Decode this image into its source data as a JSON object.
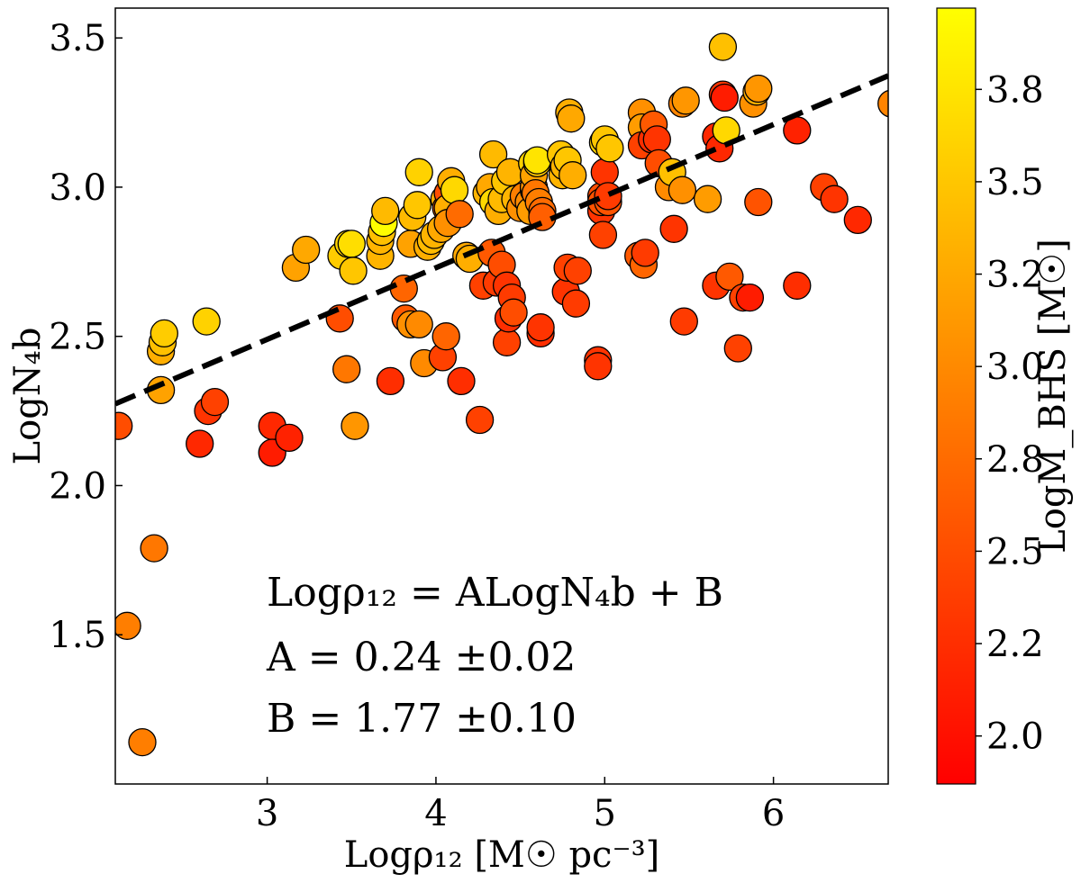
{
  "chart_data": {
    "type": "scatter",
    "xlabel": "Logρ₁₂ [M☉ pc⁻³]",
    "ylabel": "LogN₄b",
    "xlim": [
      2.1,
      6.68
    ],
    "ylim": [
      1.0,
      3.6
    ],
    "xticks": [
      3,
      4,
      5,
      6
    ],
    "xtick_labels": [
      "3",
      "4",
      "5",
      "6"
    ],
    "yticks": [
      1.5,
      2.0,
      2.5,
      3.0,
      3.5
    ],
    "ytick_labels": [
      "1.5",
      "2.0",
      "2.5",
      "3.0",
      "3.5"
    ],
    "grid": false,
    "fit_line": {
      "slope": 0.24,
      "intercept": 1.77,
      "style": "dashed",
      "color": "#000000"
    },
    "annotations": {
      "equation": "Logρ₁₂ = ALogN₄b + B",
      "a_text": "A = 0.24 ±0.02",
      "b_text": "B = 1.77 ±0.10"
    },
    "colorbar": {
      "label": "LogM_BHS [M☉]",
      "min": 1.87,
      "max": 3.97,
      "colors": [
        "#ff0000",
        "#ff8000",
        "#ffff00"
      ],
      "ticks": [
        2.0,
        2.25,
        2.5,
        2.75,
        3.0,
        3.25,
        3.5,
        3.75
      ],
      "tick_labels": [
        "2.0",
        "2.2",
        "2.5",
        "2.8",
        "3.0",
        "3.2",
        "3.5",
        "3.8"
      ]
    },
    "points": [
      [
        2.12,
        2.2,
        2.5
      ],
      [
        2.17,
        1.53,
        2.9
      ],
      [
        2.26,
        1.14,
        2.9
      ],
      [
        2.33,
        1.79,
        2.85
      ],
      [
        2.37,
        2.32,
        3.2
      ],
      [
        2.37,
        2.45,
        3.3
      ],
      [
        2.38,
        2.48,
        3.45
      ],
      [
        2.39,
        2.51,
        3.55
      ],
      [
        2.6,
        2.14,
        2.2
      ],
      [
        2.64,
        2.55,
        3.6
      ],
      [
        2.65,
        2.25,
        2.3
      ],
      [
        2.69,
        2.28,
        2.4
      ],
      [
        3.03,
        2.2,
        2.2
      ],
      [
        3.03,
        2.11,
        2.1
      ],
      [
        3.13,
        2.16,
        2.15
      ],
      [
        3.17,
        2.73,
        3.2
      ],
      [
        3.23,
        2.79,
        3.25
      ],
      [
        3.43,
        2.56,
        2.5
      ],
      [
        3.44,
        2.77,
        3.55
      ],
      [
        3.47,
        2.39,
        2.85
      ],
      [
        3.48,
        2.81,
        3.6
      ],
      [
        3.5,
        2.81,
        3.7
      ],
      [
        3.51,
        2.72,
        3.5
      ],
      [
        3.52,
        2.2,
        3.1
      ],
      [
        3.67,
        2.77,
        3.35
      ],
      [
        3.67,
        2.82,
        3.35
      ],
      [
        3.68,
        2.85,
        3.45
      ],
      [
        3.69,
        2.88,
        3.95
      ],
      [
        3.7,
        2.92,
        3.4
      ],
      [
        3.73,
        2.35,
        2.25
      ],
      [
        3.81,
        2.66,
        2.7
      ],
      [
        3.82,
        2.56,
        2.6
      ],
      [
        3.85,
        2.54,
        3.05
      ],
      [
        3.85,
        2.81,
        3.2
      ],
      [
        3.86,
        2.9,
        3.4
      ],
      [
        3.89,
        2.94,
        3.5
      ],
      [
        3.9,
        3.05,
        3.6
      ],
      [
        3.9,
        2.54,
        3.0
      ],
      [
        3.93,
        2.41,
        3.0
      ],
      [
        3.95,
        2.8,
        3.3
      ],
      [
        3.97,
        2.82,
        3.4
      ],
      [
        3.99,
        2.84,
        3.35
      ],
      [
        4.03,
        2.86,
        3.25
      ],
      [
        4.04,
        2.43,
        2.4
      ],
      [
        4.05,
        2.96,
        3.3
      ],
      [
        4.06,
        2.5,
        2.7
      ],
      [
        4.06,
        2.93,
        2.6
      ],
      [
        4.07,
        2.98,
        2.5
      ],
      [
        4.07,
        2.93,
        3.3
      ],
      [
        4.07,
        2.88,
        3.05
      ],
      [
        4.09,
        3.02,
        3.3
      ],
      [
        4.11,
        2.99,
        3.65
      ],
      [
        4.14,
        2.91,
        2.75
      ],
      [
        4.15,
        2.35,
        2.25
      ],
      [
        4.18,
        2.77,
        3.25
      ],
      [
        4.2,
        2.76,
        3.3
      ],
      [
        4.26,
        2.22,
        2.4
      ],
      [
        4.28,
        2.67,
        2.4
      ],
      [
        4.3,
        2.98,
        3.35
      ],
      [
        4.32,
        3.0,
        3.25
      ],
      [
        4.33,
        2.78,
        2.6
      ],
      [
        4.34,
        3.11,
        3.4
      ],
      [
        4.34,
        2.95,
        3.65
      ],
      [
        4.36,
        2.68,
        2.35
      ],
      [
        4.37,
        2.92,
        3.3
      ],
      [
        4.39,
        2.74,
        2.5
      ],
      [
        4.39,
        2.96,
        3.4
      ],
      [
        4.41,
        3.02,
        3.5
      ],
      [
        4.42,
        2.67,
        2.3
      ],
      [
        4.42,
        2.48,
        2.4
      ],
      [
        4.43,
        2.56,
        2.25
      ],
      [
        4.44,
        3.05,
        3.35
      ],
      [
        4.45,
        2.63,
        2.35
      ],
      [
        4.46,
        2.58,
        2.5
      ],
      [
        4.47,
        2.96,
        3.35
      ],
      [
        4.5,
        2.93,
        3.05
      ],
      [
        4.52,
        2.97,
        2.9
      ],
      [
        4.55,
        2.95,
        3.0
      ],
      [
        4.56,
        2.92,
        3.15
      ],
      [
        4.57,
        3.08,
        3.6
      ],
      [
        4.58,
        2.99,
        2.6
      ],
      [
        4.58,
        3.0,
        3.05
      ],
      [
        4.58,
        3.04,
        3.2
      ],
      [
        4.59,
        2.98,
        2.85
      ],
      [
        4.6,
        3.08,
        3.5
      ],
      [
        4.6,
        3.09,
        3.75
      ],
      [
        4.61,
        2.95,
        2.9
      ],
      [
        4.62,
        2.51,
        2.25
      ],
      [
        4.62,
        2.53,
        2.3
      ],
      [
        4.63,
        2.92,
        2.75
      ],
      [
        4.63,
        2.9,
        2.65
      ],
      [
        4.74,
        3.11,
        3.5
      ],
      [
        4.75,
        3.04,
        3.35
      ],
      [
        4.76,
        3.07,
        3.35
      ],
      [
        4.77,
        2.65,
        2.3
      ],
      [
        4.78,
        2.73,
        2.4
      ],
      [
        4.78,
        3.09,
        3.5
      ],
      [
        4.79,
        3.25,
        3.3
      ],
      [
        4.8,
        3.23,
        3.25
      ],
      [
        4.81,
        3.04,
        3.3
      ],
      [
        4.83,
        2.61,
        2.35
      ],
      [
        4.84,
        2.72,
        2.4
      ],
      [
        4.96,
        2.42,
        2.3
      ],
      [
        4.96,
        2.4,
        2.3
      ],
      [
        4.98,
        2.92,
        2.3
      ],
      [
        4.98,
        2.97,
        2.5
      ],
      [
        4.98,
        2.95,
        2.55
      ],
      [
        4.99,
        2.84,
        2.4
      ],
      [
        4.99,
        3.15,
        3.6
      ],
      [
        5.0,
        3.05,
        2.3
      ],
      [
        5.0,
        3.16,
        3.5
      ],
      [
        5.02,
        2.95,
        2.55
      ],
      [
        5.02,
        2.97,
        2.35
      ],
      [
        5.03,
        3.13,
        3.5
      ],
      [
        5.2,
        2.77,
        2.6
      ],
      [
        5.22,
        3.25,
        3.05
      ],
      [
        5.22,
        3.2,
        3.15
      ],
      [
        5.22,
        3.14,
        2.4
      ],
      [
        5.23,
        2.74,
        2.7
      ],
      [
        5.24,
        2.78,
        2.35
      ],
      [
        5.28,
        3.16,
        2.25
      ],
      [
        5.29,
        3.21,
        2.6
      ],
      [
        5.31,
        3.16,
        2.3
      ],
      [
        5.32,
        3.08,
        2.5
      ],
      [
        5.38,
        3.0,
        3.0
      ],
      [
        5.4,
        3.05,
        3.45
      ],
      [
        5.41,
        2.86,
        2.3
      ],
      [
        5.46,
        2.99,
        3.05
      ],
      [
        5.46,
        3.28,
        2.95
      ],
      [
        5.47,
        2.55,
        2.35
      ],
      [
        5.48,
        3.29,
        3.1
      ],
      [
        5.61,
        2.96,
        3.15
      ],
      [
        5.66,
        3.17,
        2.2
      ],
      [
        5.66,
        2.67,
        2.3
      ],
      [
        5.68,
        3.13,
        2.2
      ],
      [
        5.7,
        3.47,
        3.45
      ],
      [
        5.7,
        3.31,
        2.3
      ],
      [
        5.71,
        3.3,
        2.1
      ],
      [
        5.72,
        3.19,
        3.65
      ],
      [
        5.74,
        2.7,
        2.6
      ],
      [
        5.79,
        2.46,
        2.4
      ],
      [
        5.82,
        2.63,
        2.4
      ],
      [
        5.86,
        2.63,
        2.1
      ],
      [
        5.88,
        3.28,
        3.05
      ],
      [
        5.9,
        3.32,
        3.3
      ],
      [
        5.91,
        2.95,
        2.55
      ],
      [
        5.91,
        3.33,
        3.1
      ],
      [
        6.14,
        3.19,
        2.15
      ],
      [
        6.14,
        2.67,
        2.25
      ],
      [
        6.3,
        3.0,
        2.4
      ],
      [
        6.36,
        2.96,
        2.3
      ],
      [
        6.5,
        2.89,
        2.2
      ],
      [
        6.7,
        3.28,
        2.95
      ]
    ]
  }
}
